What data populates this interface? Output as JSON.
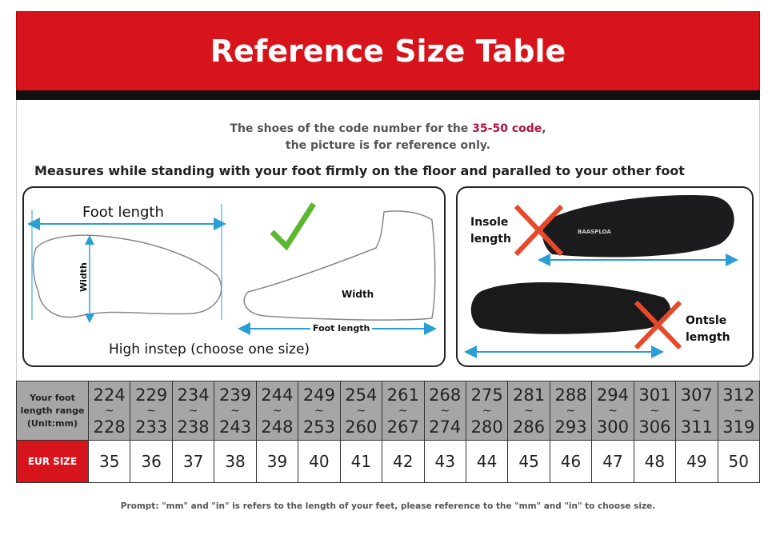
{
  "header": {
    "title": "Reference Size Table"
  },
  "note": {
    "line1_prefix": "The shoes of the code number for the ",
    "line1_highlight": "35-50 code",
    "line1_suffix": ",",
    "line2": "the picture is for reference only.",
    "highlight_color": "#b0123f"
  },
  "instruction": "Measures while standing with your foot firmly on the floor and paralled to your other foot",
  "left_panel": {
    "foot_length": "Foot length",
    "width_vertical": "Width",
    "width": "Width",
    "foot_length_small": "Foot length",
    "high_instep": "High instep  (choose one size)"
  },
  "right_panel": {
    "insole_length": "Insole\nlength",
    "ontsle_length": "Ontsle\nlemgth",
    "brand": "BAASPLOA"
  },
  "colors": {
    "header_red": "#d7141b",
    "arrow_blue": "#2a9fd6",
    "check_green": "#5cb82e",
    "cross_orange": "#e8492b",
    "table_gray": "#a6a6a6"
  },
  "table": {
    "row1_header": [
      "Your foot",
      "length range",
      "(Unit:mm)"
    ],
    "row2_header": "EUR SIZE",
    "ranges": [
      [
        "224",
        "228"
      ],
      [
        "229",
        "233"
      ],
      [
        "234",
        "238"
      ],
      [
        "239",
        "243"
      ],
      [
        "244",
        "248"
      ],
      [
        "249",
        "253"
      ],
      [
        "254",
        "260"
      ],
      [
        "261",
        "267"
      ],
      [
        "268",
        "274"
      ],
      [
        "275",
        "280"
      ],
      [
        "281",
        "286"
      ],
      [
        "288",
        "293"
      ],
      [
        "294",
        "300"
      ],
      [
        "301",
        "306"
      ],
      [
        "307",
        "311"
      ],
      [
        "312",
        "319"
      ]
    ],
    "sizes": [
      "35",
      "36",
      "37",
      "38",
      "39",
      "40",
      "41",
      "42",
      "43",
      "44",
      "45",
      "46",
      "47",
      "48",
      "49",
      "50"
    ]
  },
  "prompt": "Prompt: \"mm\" and \"in\" is refers to the length of your feet, please reference to the \"mm\" and \"in\" to choose size."
}
